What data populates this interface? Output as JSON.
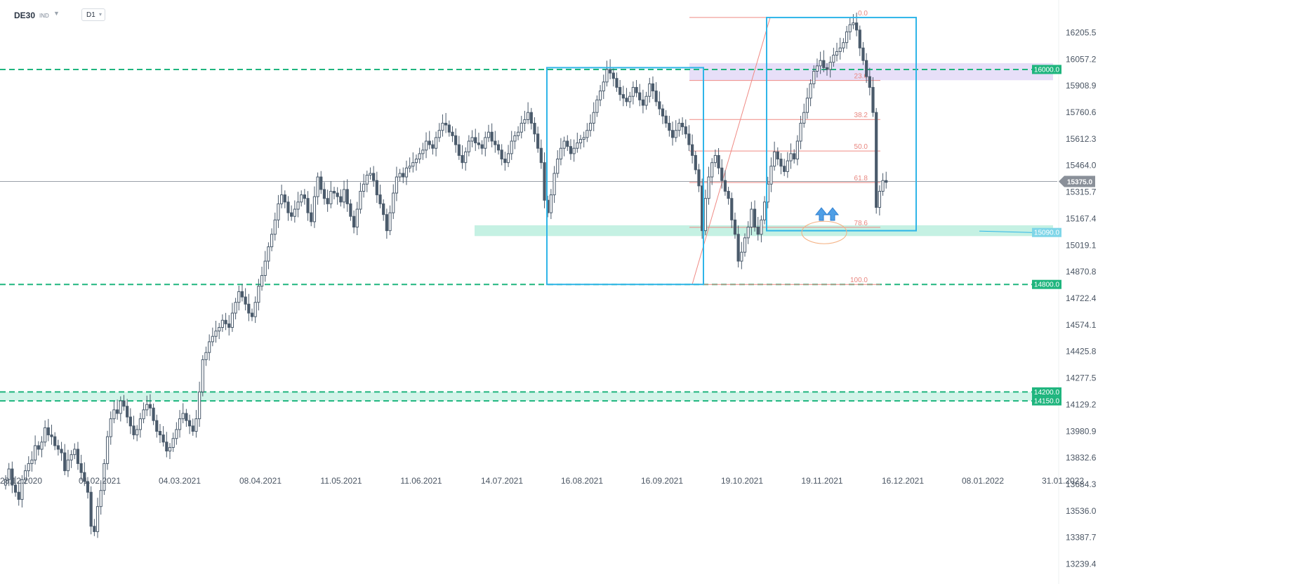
{
  "header": {
    "symbol": "DE30",
    "symbol_sub": "IND",
    "timeframe": "D1"
  },
  "colors": {
    "candle": "#4a5a6b",
    "level_line": "#1fb57e",
    "zone_fill": "#7fe0c0",
    "purple_zone": "#c9b8f0",
    "box": "#2fb5e8",
    "fib": "#ef8a84",
    "price_tag": "#8a9099",
    "arrow": "#4f9fe6",
    "ellipse": "#f4b183"
  },
  "chart_data": {
    "type": "candlestick",
    "symbol": "DE30",
    "timeframe": "D1",
    "ylim": [
      13239.4,
      16330
    ],
    "y_ticks": [
      16205.5,
      16057.2,
      15908.9,
      15760.6,
      15612.3,
      15464.0,
      15315.7,
      15167.4,
      15019.1,
      14870.8,
      14722.4,
      14574.1,
      14425.8,
      14277.5,
      14129.2,
      13980.9,
      13832.6,
      13684.3,
      13536.0,
      13387.7,
      13239.4
    ],
    "x_ticks": [
      "28.12.2020",
      "01.02.2021",
      "04.03.2021",
      "08.04.2021",
      "11.05.2021",
      "11.06.2021",
      "14.07.2021",
      "16.08.2021",
      "16.09.2021",
      "19.10.2021",
      "19.11.2021",
      "16.12.2021",
      "08.01.2022",
      "31.01.2022"
    ],
    "current_price": "15375.0",
    "levels": [
      {
        "label": "16000.0",
        "value": 16000
      },
      {
        "label": "15090.0",
        "value": 15090
      },
      {
        "label": "14800.0",
        "value": 14800
      },
      {
        "label": "14200.0",
        "value": 14200
      },
      {
        "label": "14150.0",
        "value": 14150
      }
    ],
    "fibonacci": {
      "low": 14800,
      "high": 16290,
      "ratios": [
        "0.0",
        "23.6",
        "38.2",
        "50.0",
        "61.8",
        "78.6",
        "100.0"
      ]
    },
    "candles_close": [
      13710,
      13770,
      13680,
      13640,
      13600,
      13710,
      13760,
      13800,
      13820,
      13900,
      13880,
      13920,
      14000,
      13960,
      13950,
      13900,
      13880,
      13860,
      13760,
      13820,
      13850,
      13880,
      13800,
      13750,
      13700,
      13640,
      13450,
      13420,
      13560,
      13650,
      13800,
      13950,
      14050,
      14100,
      14080,
      14150,
      14120,
      14060,
      14010,
      13960,
      13990,
      14050,
      14100,
      14130,
      14110,
      14040,
      13980,
      13960,
      13920,
      13870,
      13890,
      13940,
      13990,
      14050,
      14080,
      14040,
      14010,
      13980,
      14050,
      14200,
      14380,
      14420,
      14480,
      14510,
      14540,
      14560,
      14600,
      14580,
      14560,
      14640,
      14700,
      14760,
      14730,
      14690,
      14640,
      14620,
      14700,
      14790,
      14850,
      14930,
      15010,
      15080,
      15160,
      15250,
      15300,
      15260,
      15200,
      15180,
      15220,
      15260,
      15300,
      15280,
      15200,
      15150,
      15290,
      15400,
      15330,
      15280,
      15250,
      15320,
      15310,
      15290,
      15260,
      15330,
      15250,
      15180,
      15120,
      15220,
      15320,
      15360,
      15410,
      15420,
      15380,
      15300,
      15250,
      15190,
      15100,
      15200,
      15310,
      15400,
      15420,
      15400,
      15450,
      15460,
      15480,
      15500,
      15530,
      15550,
      15600,
      15580,
      15560,
      15620,
      15660,
      15700,
      15690,
      15650,
      15630,
      15580,
      15520,
      15480,
      15540,
      15600,
      15620,
      15590,
      15580,
      15560,
      15620,
      15650,
      15600,
      15580,
      15550,
      15500,
      15480,
      15530,
      15600,
      15630,
      15650,
      15700,
      15720,
      15760,
      15700,
      15640,
      15560,
      15480,
      15270,
      15200,
      15300,
      15420,
      15500,
      15560,
      15600,
      15570,
      15530,
      15560,
      15590,
      15610,
      15620,
      15660,
      15700,
      15760,
      15830,
      15880,
      15930,
      16000,
      15980,
      15950,
      15900,
      15860,
      15840,
      15820,
      15850,
      15900,
      15870,
      15830,
      15800,
      15850,
      15920,
      15880,
      15820,
      15780,
      15740,
      15700,
      15660,
      15620,
      15660,
      15700,
      15680,
      15640,
      15580,
      15520,
      15440,
      15350,
      15100,
      15280,
      15400,
      15480,
      15520,
      15450,
      15380,
      15320,
      15280,
      15160,
      15080,
      14930,
      14980,
      15060,
      15120,
      15220,
      15120,
      15080,
      15160,
      15260,
      15360,
      15460,
      15540,
      15500,
      15460,
      15430,
      15490,
      15530,
      15500,
      15600,
      15700,
      15760,
      15840,
      15920,
      15990,
      16020,
      16050,
      16010,
      16000,
      16040,
      16080,
      16100,
      16120,
      16150,
      16210,
      16250,
      16260,
      16220,
      16120,
      16050,
      15960,
      15900,
      15760,
      15230,
      15320,
      15380,
      15370
    ]
  }
}
